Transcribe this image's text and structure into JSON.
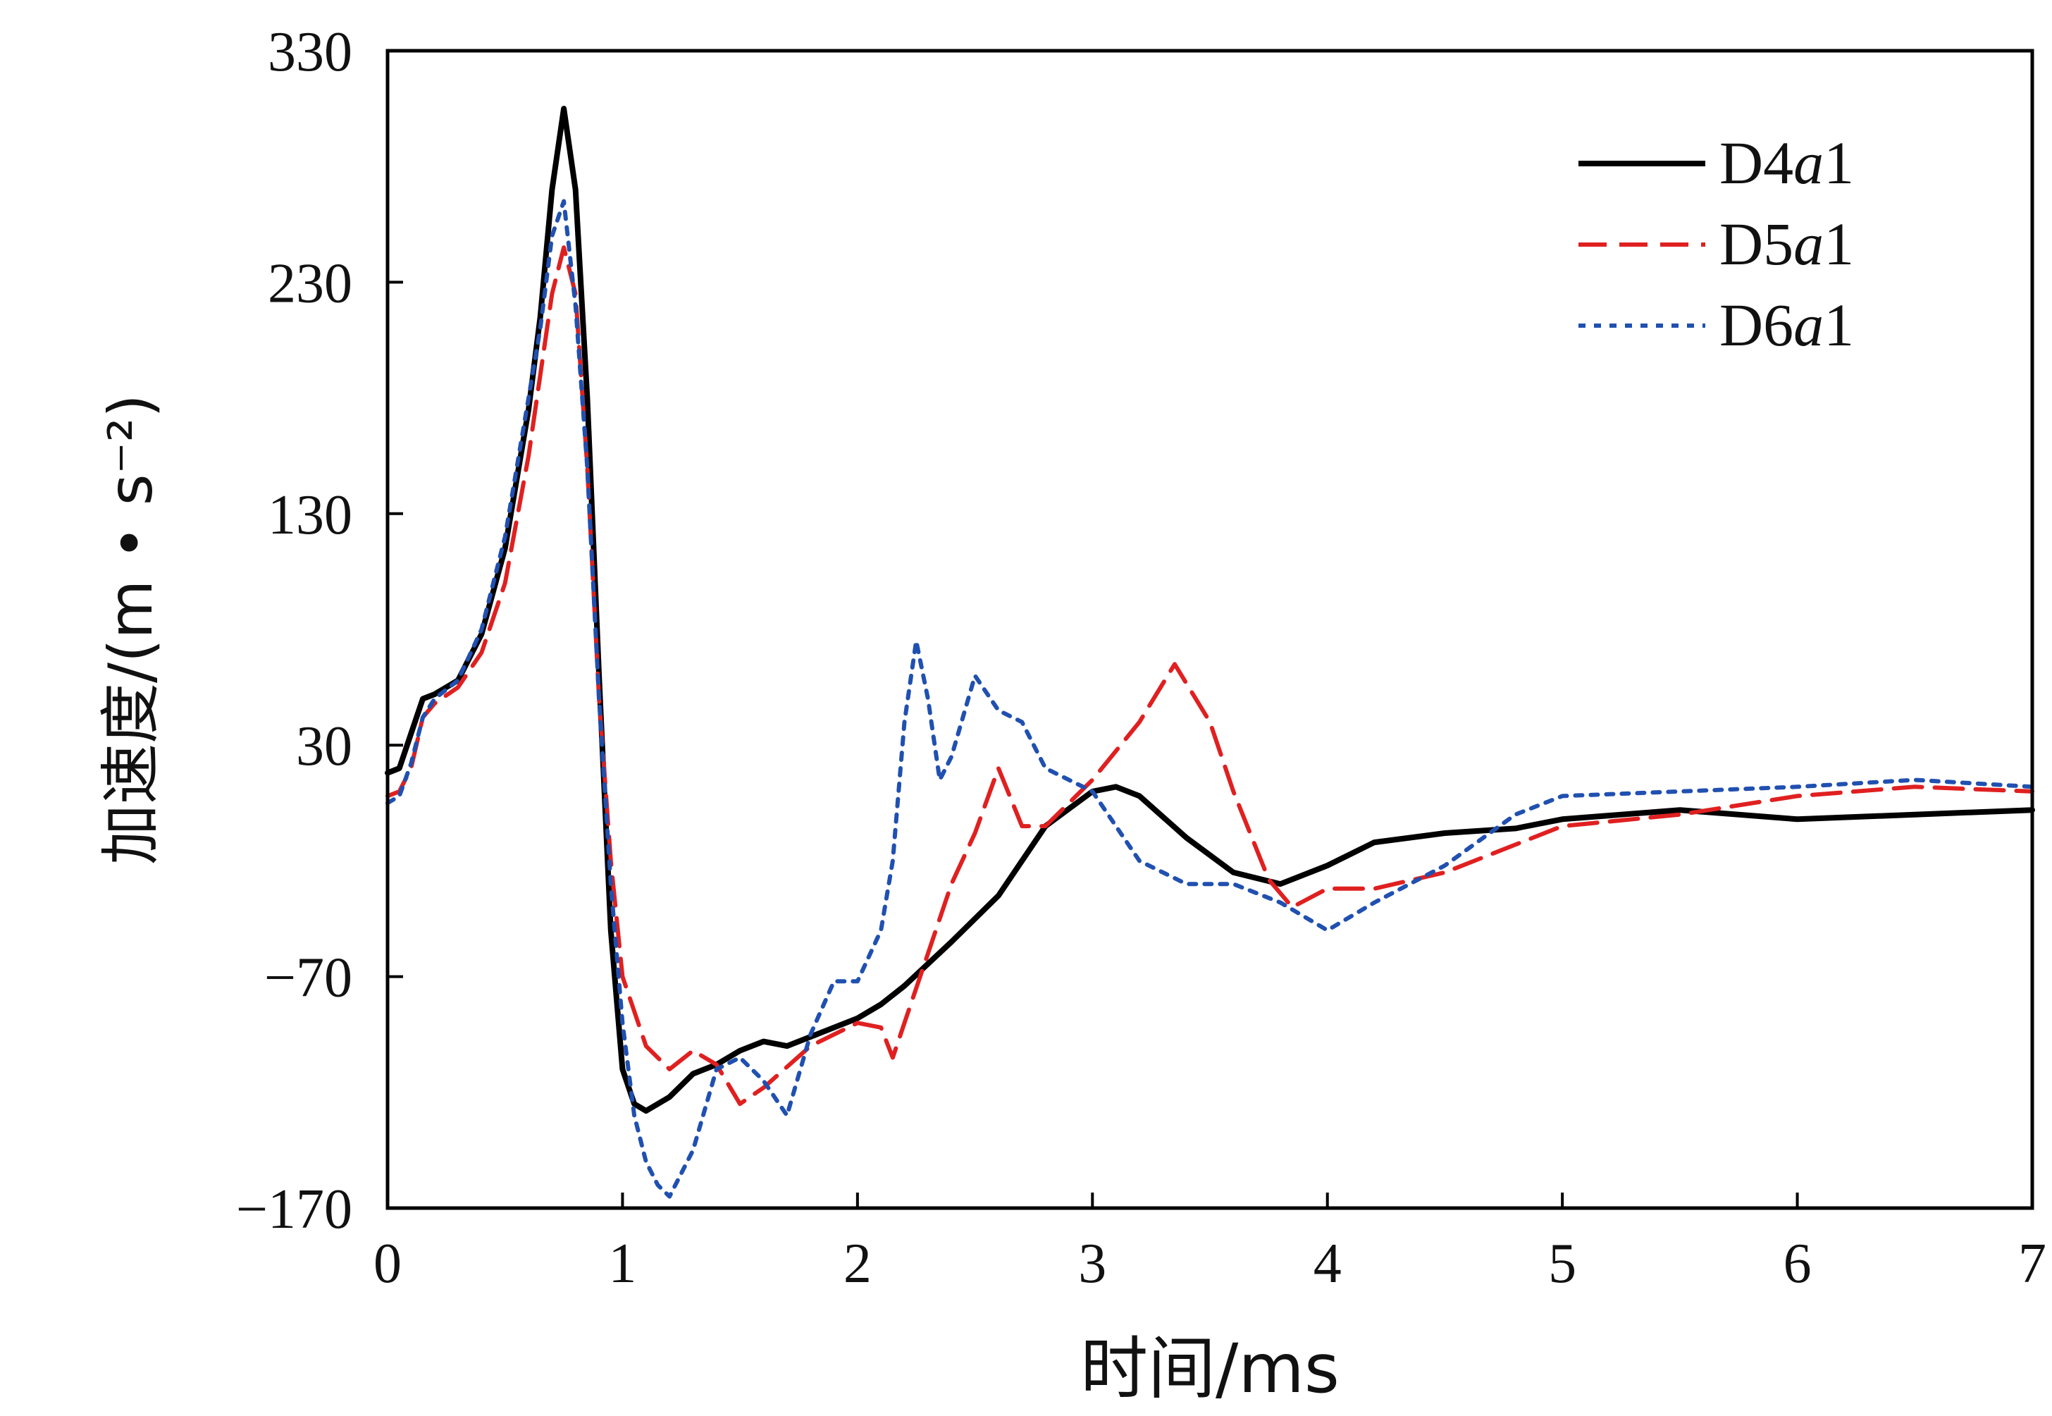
{
  "chart_data": {
    "type": "line",
    "xlabel": "时间/ms",
    "ylabel": "加速度/(m • s⁻²)",
    "xlim": [
      0,
      7
    ],
    "ylim": [
      -170,
      330
    ],
    "xticks": [
      0,
      1,
      2,
      3,
      4,
      5,
      6,
      7
    ],
    "yticks": [
      330,
      230,
      130,
      30,
      -70,
      -170
    ],
    "xtick_labels": [
      "0",
      "1",
      "2",
      "3",
      "4",
      "5",
      "6",
      "7"
    ],
    "ytick_labels": [
      "330",
      "230",
      "130",
      "30",
      "−70",
      "−170"
    ],
    "grid": false,
    "legend_position": "top-right",
    "series": [
      {
        "name": "D4a1",
        "label_prefix": "D4",
        "label_italic": "a",
        "label_suffix": "1",
        "color": "#000000",
        "style": "solid",
        "x": [
          0,
          0.05,
          0.1,
          0.15,
          0.2,
          0.3,
          0.4,
          0.5,
          0.6,
          0.65,
          0.7,
          0.75,
          0.8,
          0.85,
          0.9,
          0.95,
          1.0,
          1.05,
          1.1,
          1.2,
          1.3,
          1.4,
          1.5,
          1.6,
          1.7,
          1.8,
          1.9,
          2.0,
          2.1,
          2.2,
          2.4,
          2.6,
          2.8,
          3.0,
          3.1,
          3.2,
          3.4,
          3.6,
          3.8,
          4.0,
          4.2,
          4.5,
          4.8,
          5.0,
          5.5,
          6.0,
          6.5,
          7.0
        ],
        "y": [
          18,
          20,
          35,
          50,
          52,
          58,
          78,
          115,
          175,
          215,
          270,
          305,
          270,
          180,
          60,
          -50,
          -110,
          -125,
          -128,
          -122,
          -112,
          -108,
          -102,
          -98,
          -100,
          -96,
          -92,
          -88,
          -82,
          -74,
          -55,
          -35,
          -5,
          10,
          12,
          8,
          -10,
          -25,
          -30,
          -22,
          -12,
          -8,
          -6,
          -2,
          2,
          -2,
          0,
          2
        ]
      },
      {
        "name": "D5a1",
        "label_prefix": "D5",
        "label_italic": "a",
        "label_suffix": "1",
        "color": "#e02020",
        "style": "dashed",
        "x": [
          0,
          0.05,
          0.1,
          0.15,
          0.2,
          0.3,
          0.4,
          0.5,
          0.6,
          0.7,
          0.75,
          0.8,
          0.85,
          0.9,
          0.95,
          1.0,
          1.1,
          1.2,
          1.3,
          1.4,
          1.5,
          1.6,
          1.8,
          2.0,
          2.1,
          2.15,
          2.2,
          2.3,
          2.4,
          2.5,
          2.6,
          2.7,
          2.8,
          3.0,
          3.2,
          3.35,
          3.5,
          3.6,
          3.75,
          3.85,
          4.0,
          4.2,
          4.5,
          5.0,
          5.5,
          6.0,
          6.5,
          7.0
        ],
        "y": [
          8,
          10,
          20,
          42,
          48,
          55,
          70,
          100,
          155,
          225,
          245,
          225,
          150,
          50,
          -20,
          -70,
          -100,
          -110,
          -102,
          -108,
          -125,
          -118,
          -100,
          -90,
          -92,
          -105,
          -90,
          -60,
          -30,
          -8,
          20,
          -5,
          -5,
          15,
          40,
          65,
          40,
          10,
          -28,
          -40,
          -32,
          -32,
          -25,
          -5,
          0,
          8,
          12,
          10
        ]
      },
      {
        "name": "D6a1",
        "label_prefix": "D6",
        "label_italic": "a",
        "label_suffix": "1",
        "color": "#2050b0",
        "style": "dotted",
        "x": [
          0,
          0.05,
          0.1,
          0.15,
          0.2,
          0.3,
          0.4,
          0.5,
          0.6,
          0.65,
          0.7,
          0.75,
          0.8,
          0.85,
          0.9,
          0.95,
          1.0,
          1.05,
          1.1,
          1.15,
          1.2,
          1.3,
          1.4,
          1.5,
          1.6,
          1.7,
          1.8,
          1.9,
          2.0,
          2.1,
          2.15,
          2.2,
          2.25,
          2.3,
          2.35,
          2.4,
          2.5,
          2.6,
          2.7,
          2.8,
          3.0,
          3.2,
          3.4,
          3.6,
          3.8,
          4.0,
          4.2,
          4.5,
          4.8,
          5.0,
          5.5,
          6.0,
          6.5,
          7.0
        ],
        "y": [
          5,
          8,
          22,
          42,
          50,
          58,
          80,
          120,
          180,
          210,
          250,
          265,
          220,
          150,
          50,
          -30,
          -90,
          -130,
          -150,
          -160,
          -165,
          -145,
          -110,
          -105,
          -115,
          -130,
          -95,
          -72,
          -72,
          -50,
          -20,
          40,
          75,
          50,
          15,
          25,
          60,
          45,
          40,
          20,
          10,
          -20,
          -30,
          -30,
          -38,
          -50,
          -38,
          -22,
          0,
          8,
          10,
          12,
          15,
          12
        ]
      }
    ]
  }
}
